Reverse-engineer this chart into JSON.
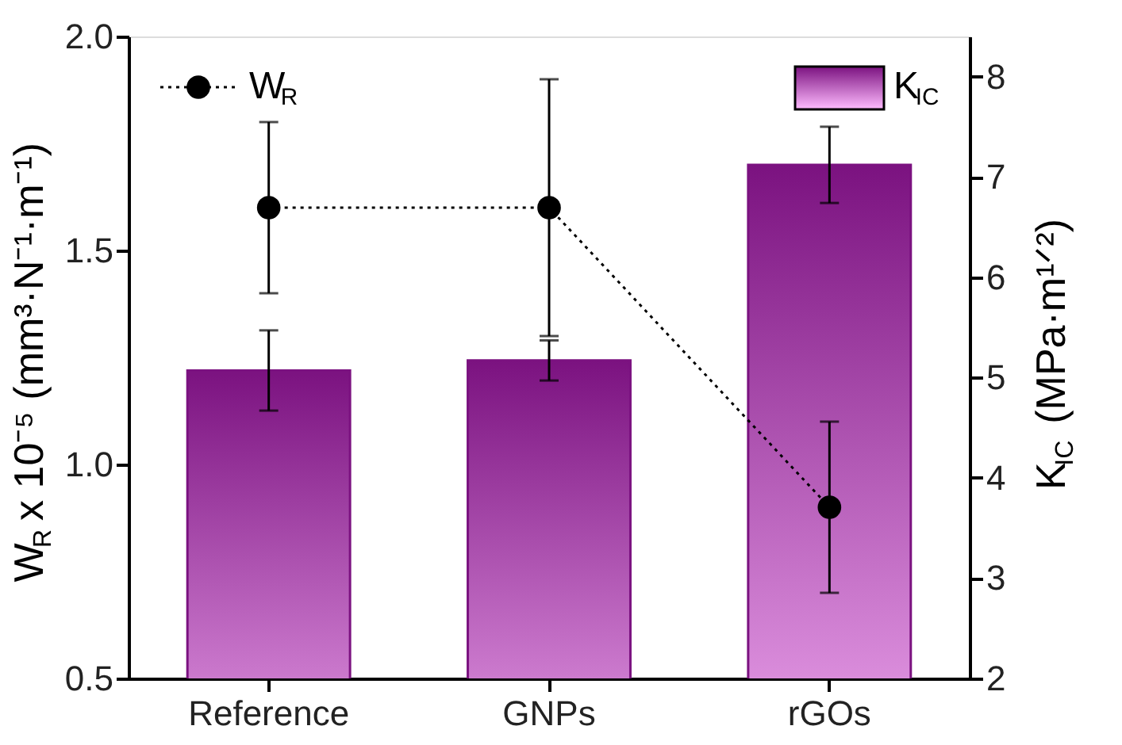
{
  "chart_data": {
    "type": "bar",
    "categories": [
      "Reference",
      "GNPs",
      "rGOs"
    ],
    "ylabel": "W$_{R}$ x 10⁻⁵ (mm³·N⁻¹·m⁻¹)",
    "y2label": "K$_{IC}$ (MPa·m¹ᐟ²)",
    "ylim": [
      0.5,
      2.0
    ],
    "yticks": [
      0.5,
      {
        "value": 1,
        "label": "1.0"
      },
      1.5,
      {
        "value": 2,
        "label": "2.0"
      }
    ],
    "y2lim": [
      2,
      8.4
    ],
    "y2ticks": [
      2,
      3,
      4,
      5,
      6,
      7,
      8
    ],
    "legend": "top",
    "grid": false,
    "series": [
      {
        "name": "W$_{R}$",
        "type": "line",
        "color": "#000000",
        "marker": "circle",
        "line_style": "dotted",
        "values": [
          1.6,
          1.6,
          0.9
        ],
        "errors": [
          0.2,
          0.3,
          0.2
        ]
      },
      {
        "name": "K$_{IC}$",
        "axis": "y2",
        "color": "#7b1280",
        "values": [
          5.07,
          5.17,
          7.12
        ],
        "errors": [
          0.4,
          0.2,
          0.38
        ]
      }
    ]
  }
}
